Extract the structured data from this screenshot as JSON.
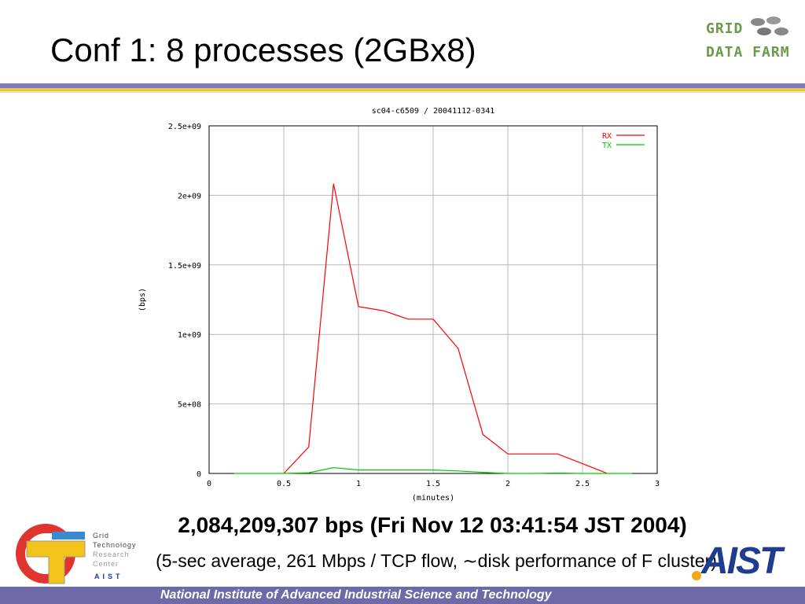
{
  "slide": {
    "title": "Conf 1: 8 processes (2GBx8)",
    "headline": "2,084,209,307 bps (Fri Nov 12 03:41:54 JST 2004)",
    "subline": "(5-sec average, 261 Mbps / TCP flow, ∼disk performance of F cluster)",
    "footer": "National Institute of Advanced Industrial Science and Technology"
  },
  "logos": {
    "gdf_line1": "GRID",
    "gdf_line2": "DATA FARM",
    "gtrc_lines": [
      "Grid",
      "Technology",
      "Research",
      "Center"
    ],
    "gtrc_org": "AIST",
    "aist": "AIST"
  },
  "colors": {
    "rx": "#ff0000",
    "tx": "#00cc00",
    "grid": "#b8b8b8",
    "footer": "#6e6aa8",
    "accent_yellow": "#e8c74a"
  },
  "chart_data": {
    "type": "line",
    "title": "sc04-c6509 / 20041112-0341",
    "xlabel": "(minutes)",
    "ylabel": "(bps)",
    "xlim": [
      0,
      3
    ],
    "ylim": [
      0,
      2500000000
    ],
    "xticks": [
      0,
      0.5,
      1,
      1.5,
      2,
      2.5,
      3
    ],
    "xtick_labels": [
      "0",
      "0.5",
      "1",
      "1.5",
      "2",
      "2.5",
      "3"
    ],
    "yticks": [
      0,
      500000000,
      1000000000,
      1500000000,
      2000000000,
      2500000000
    ],
    "ytick_labels": [
      "0",
      "5e+08",
      "1e+09",
      "1.5e+09",
      "2e+09",
      "2.5e+09"
    ],
    "grid": true,
    "legend_position": "top-right",
    "series": [
      {
        "name": "RX",
        "x": [
          0.5,
          0.667,
          0.833,
          1.0,
          1.167,
          1.333,
          1.5,
          1.667,
          1.833,
          2.0,
          2.167,
          2.333,
          2.5,
          2.667
        ],
        "values": [
          0,
          190000000,
          2084209307,
          1200000000,
          1170000000,
          1110000000,
          1110000000,
          900000000,
          280000000,
          140000000,
          140000000,
          140000000,
          70000000,
          0
        ]
      },
      {
        "name": "TX",
        "x": [
          0.167,
          0.333,
          0.5,
          0.667,
          0.833,
          1.0,
          1.167,
          1.333,
          1.5,
          1.667,
          1.833,
          2.0,
          2.167,
          2.333,
          2.5,
          2.667,
          2.833
        ],
        "values": [
          0,
          0,
          0,
          5000000,
          42000000,
          25000000,
          25000000,
          25000000,
          25000000,
          18000000,
          8000000,
          0,
          0,
          3000000,
          0,
          0,
          0
        ]
      }
    ]
  }
}
